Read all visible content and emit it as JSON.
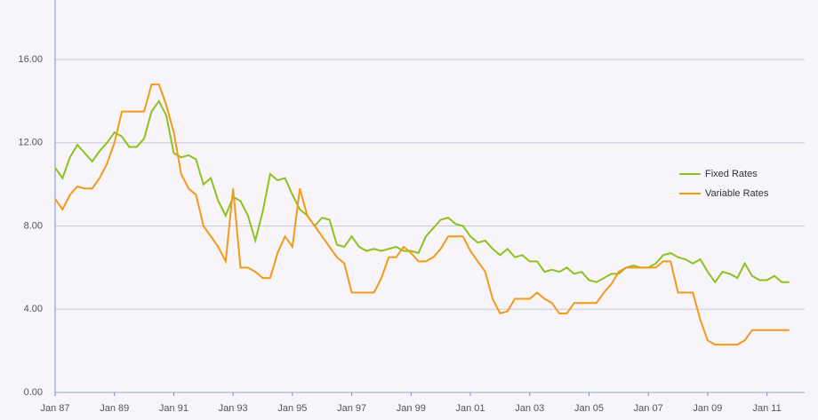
{
  "chart_data": {
    "type": "line",
    "categories": [
      "Jan 87",
      null,
      null,
      null,
      null,
      null,
      null,
      null,
      "Jan 89",
      null,
      null,
      null,
      null,
      null,
      null,
      null,
      "Jan 91",
      null,
      null,
      null,
      null,
      null,
      null,
      null,
      "Jan 93",
      null,
      null,
      null,
      null,
      null,
      null,
      null,
      "Jan 95",
      null,
      null,
      null,
      null,
      null,
      null,
      null,
      "Jan 97",
      null,
      null,
      null,
      null,
      null,
      null,
      null,
      "Jan 99",
      null,
      null,
      null,
      null,
      null,
      null,
      null,
      "Jan 01",
      null,
      null,
      null,
      null,
      null,
      null,
      null,
      "Jan 03",
      null,
      null,
      null,
      null,
      null,
      null,
      null,
      "Jan 05",
      null,
      null,
      null,
      null,
      null,
      null,
      null,
      "Jan 07",
      null,
      null,
      null,
      null,
      null,
      null,
      null,
      "Jan 09",
      null,
      null,
      null,
      null,
      null,
      null,
      null,
      "Jan 11",
      null,
      null,
      null
    ],
    "series": [
      {
        "name": "Fixed Rates",
        "color": "#8dc21f",
        "values": [
          10.8,
          10.3,
          11.3,
          11.9,
          11.5,
          11.1,
          11.6,
          12.0,
          12.5,
          12.3,
          11.8,
          11.8,
          12.2,
          13.5,
          14.0,
          13.3,
          11.5,
          11.3,
          11.4,
          11.2,
          10.0,
          10.3,
          9.2,
          8.5,
          9.4,
          9.2,
          8.5,
          7.3,
          8.7,
          10.5,
          10.2,
          10.3,
          9.5,
          8.8,
          8.5,
          8.0,
          8.4,
          8.3,
          7.1,
          7.0,
          7.5,
          7.0,
          6.8,
          6.9,
          6.8,
          6.9,
          7.0,
          6.8,
          6.8,
          6.7,
          7.5,
          7.9,
          8.3,
          8.4,
          8.1,
          8.0,
          7.5,
          7.2,
          7.3,
          6.9,
          6.6,
          6.9,
          6.5,
          6.6,
          6.3,
          6.3,
          5.8,
          5.9,
          5.8,
          6.0,
          5.7,
          5.8,
          5.4,
          5.3,
          5.5,
          5.7,
          5.7,
          6.0,
          6.1,
          6.0,
          6.0,
          6.2,
          6.6,
          6.7,
          6.5,
          6.4,
          6.2,
          6.4,
          5.8,
          5.3,
          5.8,
          5.7,
          5.5,
          6.2,
          5.6,
          5.4,
          5.4,
          5.6,
          5.3,
          5.3
        ]
      },
      {
        "name": "Variable Rates",
        "color": "#f29a1a",
        "values": [
          9.3,
          8.8,
          9.5,
          9.9,
          9.8,
          9.8,
          10.3,
          11.0,
          12.0,
          13.5,
          13.5,
          13.5,
          13.5,
          14.8,
          14.8,
          13.8,
          12.5,
          10.5,
          9.8,
          9.5,
          8.0,
          7.5,
          7.0,
          6.3,
          9.8,
          6.0,
          6.0,
          5.8,
          5.5,
          5.5,
          6.7,
          7.5,
          7.0,
          9.8,
          8.5,
          8.0,
          7.5,
          7.0,
          6.5,
          6.2,
          4.8,
          4.8,
          4.8,
          4.8,
          5.5,
          6.5,
          6.5,
          7.0,
          6.7,
          6.3,
          6.3,
          6.5,
          6.9,
          7.5,
          7.5,
          7.5,
          6.8,
          6.3,
          5.8,
          4.5,
          3.8,
          3.9,
          4.5,
          4.5,
          4.5,
          4.8,
          4.5,
          4.3,
          3.8,
          3.8,
          4.3,
          4.3,
          4.3,
          4.3,
          4.8,
          5.2,
          5.8,
          6.0,
          6.0,
          6.0,
          6.0,
          6.0,
          6.3,
          6.3,
          4.8,
          4.8,
          4.8,
          3.5,
          2.5,
          2.3,
          2.3,
          2.3,
          2.3,
          2.5,
          3.0,
          3.0,
          3.0,
          3.0,
          3.0,
          3.0
        ]
      }
    ],
    "ylim": [
      0,
      18.86
    ],
    "yticks": [
      {
        "value": 0,
        "label": "0.00"
      },
      {
        "value": 4,
        "label": "4.00"
      },
      {
        "value": 8,
        "label": "8.00"
      },
      {
        "value": 12,
        "label": "12.00"
      },
      {
        "value": 16,
        "label": "16.00"
      }
    ],
    "grid": true,
    "legend": "right"
  }
}
